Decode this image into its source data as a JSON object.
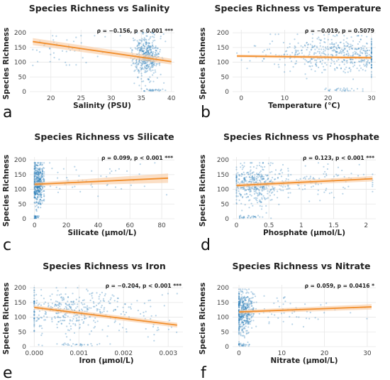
{
  "figure": {
    "colors": {
      "point": "#1f77b4",
      "line": "#f28e2b",
      "band": "#f8c9a0",
      "grid": "#e6e6e6",
      "text": "#222222"
    }
  },
  "chart_data": [
    {
      "panel_letter": "a",
      "type": "scatter",
      "title": "Species Richness vs Salinity",
      "xlabel": "Salinity (PSU)",
      "ylabel": "Species Richness",
      "xlim": [
        16.5,
        40.5
      ],
      "ylim": [
        0,
        210
      ],
      "xticks": [
        20,
        25,
        30,
        35,
        40
      ],
      "yticks": [
        0,
        50,
        100,
        150,
        200
      ],
      "annotation": "ρ = −0.156, p < 0.001 ***",
      "regression": {
        "x": [
          17,
          40
        ],
        "y": [
          170,
          102
        ],
        "band": [
          12,
          10
        ]
      },
      "clusters": [
        {
          "n": 420,
          "x": [
            32,
            39
          ],
          "y": [
            20,
            200
          ],
          "cx": 35.8,
          "cy": 120,
          "sx": 1.2,
          "sy": 38
        },
        {
          "n": 45,
          "x": [
            17,
            32
          ],
          "y": [
            60,
            190
          ],
          "cx": 22,
          "cy": 140,
          "sx": 4,
          "sy": 30
        },
        {
          "n": 30,
          "x": [
            35,
            39
          ],
          "y": [
            2,
            10
          ],
          "cx": 37,
          "cy": 5,
          "sx": 1,
          "sy": 3
        }
      ]
    },
    {
      "panel_letter": "b",
      "type": "scatter",
      "title": "Species Richness vs Temperature",
      "xlabel": "Temperature (°C)",
      "ylabel": "Species Richness",
      "xlim": [
        -2,
        31
      ],
      "ylim": [
        0,
        210
      ],
      "xticks": [
        0,
        10,
        20,
        30
      ],
      "yticks": [
        0,
        50,
        100,
        150,
        200
      ],
      "annotation": "ρ = −0.019, p = 0.5079",
      "regression": {
        "x": [
          -1,
          30
        ],
        "y": [
          121,
          115
        ],
        "band": [
          5,
          5
        ]
      },
      "clusters": [
        {
          "n": 380,
          "x": [
            -1,
            30
          ],
          "y": [
            40,
            195
          ],
          "cx": 20,
          "cy": 125,
          "sx": 8,
          "sy": 30
        },
        {
          "n": 120,
          "x": [
            15,
            30
          ],
          "y": [
            60,
            190
          ],
          "cx": 26,
          "cy": 130,
          "sx": 3,
          "sy": 30
        },
        {
          "n": 30,
          "x": [
            18,
            28
          ],
          "y": [
            2,
            12
          ],
          "cx": 24,
          "cy": 6,
          "sx": 3,
          "sy": 3
        }
      ]
    },
    {
      "panel_letter": "c",
      "type": "scatter",
      "title": "Species Richness vs Silicate",
      "xlabel": "Silicate (μmol/L)",
      "ylabel": "Species Richness",
      "xlim": [
        -3,
        88
      ],
      "ylim": [
        0,
        210
      ],
      "xticks": [
        0,
        20,
        40,
        60,
        80
      ],
      "yticks": [
        0,
        50,
        100,
        150,
        200
      ],
      "annotation": "ρ = 0.099, p < 0.001 ***",
      "regression": {
        "x": [
          0,
          84
        ],
        "y": [
          117,
          138
        ],
        "band": [
          6,
          16
        ]
      },
      "clusters": [
        {
          "n": 420,
          "x": [
            0,
            6
          ],
          "y": [
            10,
            190
          ],
          "cx": 2,
          "cy": 120,
          "sx": 2,
          "sy": 38
        },
        {
          "n": 60,
          "x": [
            5,
            84
          ],
          "y": [
            40,
            190
          ],
          "cx": 30,
          "cy": 130,
          "sx": 22,
          "sy": 28
        },
        {
          "n": 25,
          "x": [
            0,
            4
          ],
          "y": [
            2,
            12
          ],
          "cx": 1,
          "cy": 6,
          "sx": 1,
          "sy": 3
        }
      ]
    },
    {
      "panel_letter": "d",
      "type": "scatter",
      "title": "Species Richness vs Phosphate",
      "xlabel": "Phosphate (μmol/L)",
      "ylabel": "Species Richness",
      "xlim": [
        -0.06,
        2.15
      ],
      "ylim": [
        0,
        210
      ],
      "xticks": [
        0.0,
        0.5,
        1.0,
        1.5,
        2.0
      ],
      "yticks": [
        0,
        50,
        100,
        150,
        200
      ],
      "annotation": "ρ = 0.123, p < 0.001 ***",
      "regression": {
        "x": [
          0,
          2.1
        ],
        "y": [
          113,
          136
        ],
        "band": [
          6,
          9
        ]
      },
      "clusters": [
        {
          "n": 420,
          "x": [
            0,
            1.0
          ],
          "y": [
            20,
            190
          ],
          "cx": 0.3,
          "cy": 120,
          "sx": 0.2,
          "sy": 35
        },
        {
          "n": 90,
          "x": [
            0.8,
            2.1
          ],
          "y": [
            40,
            190
          ],
          "cx": 1.3,
          "cy": 130,
          "sx": 0.4,
          "sy": 30
        },
        {
          "n": 30,
          "x": [
            0.05,
            0.6
          ],
          "y": [
            2,
            12
          ],
          "cx": 0.25,
          "cy": 6,
          "sx": 0.15,
          "sy": 3
        }
      ]
    },
    {
      "panel_letter": "e",
      "type": "scatter",
      "title": "Species Richness vs Iron",
      "xlabel": "Iron (μmol/L)",
      "ylabel": "Species Richness",
      "xlim": [
        -0.0001,
        0.00333
      ],
      "ylim": [
        0,
        210
      ],
      "xticks": [
        0.0,
        0.001,
        0.002,
        0.003
      ],
      "xtick_labels": [
        "0.000",
        "0.001",
        "0.002",
        "0.003"
      ],
      "yticks": [
        0,
        50,
        100,
        150,
        200
      ],
      "annotation": "ρ = −0.204, p < 0.001 ***",
      "regression": {
        "x": [
          0,
          0.0032
        ],
        "y": [
          133,
          73
        ],
        "band": [
          7,
          8
        ]
      },
      "clusters": [
        {
          "n": 380,
          "x": [
            0,
            0.0025
          ],
          "y": [
            20,
            200
          ],
          "cx": 0.0007,
          "cy": 125,
          "sx": 0.0006,
          "sy": 35
        },
        {
          "n": 40,
          "x": [
            0.0018,
            0.0032
          ],
          "y": [
            20,
            180
          ],
          "cx": 0.0025,
          "cy": 100,
          "sx": 0.0004,
          "sy": 40
        },
        {
          "n": 30,
          "x": [
            0.0001,
            0.0017
          ],
          "y": [
            2,
            12
          ],
          "cx": 0.0009,
          "cy": 6,
          "sx": 0.0004,
          "sy": 3
        }
      ]
    },
    {
      "panel_letter": "f",
      "type": "scatter",
      "title": "Species Richness vs Nitrate",
      "xlabel": "Nitrate (μmol/L)",
      "ylabel": "Species Richness",
      "xlim": [
        -1.5,
        32
      ],
      "ylim": [
        0,
        210
      ],
      "xticks": [
        0,
        10,
        20,
        30
      ],
      "yticks": [
        0,
        50,
        100,
        150,
        200
      ],
      "annotation": "ρ = 0.059, p = 0.0416 *",
      "regression": {
        "x": [
          0,
          31
        ],
        "y": [
          118,
          135
        ],
        "band": [
          6,
          9
        ]
      },
      "clusters": [
        {
          "n": 420,
          "x": [
            0,
            4
          ],
          "y": [
            10,
            195
          ],
          "cx": 1,
          "cy": 120,
          "sx": 1.2,
          "sy": 38
        },
        {
          "n": 70,
          "x": [
            3,
            31
          ],
          "y": [
            40,
            190
          ],
          "cx": 12,
          "cy": 130,
          "sx": 8,
          "sy": 30
        },
        {
          "n": 25,
          "x": [
            0,
            3
          ],
          "y": [
            2,
            12
          ],
          "cx": 1,
          "cy": 6,
          "sx": 1,
          "sy": 3
        }
      ]
    }
  ]
}
